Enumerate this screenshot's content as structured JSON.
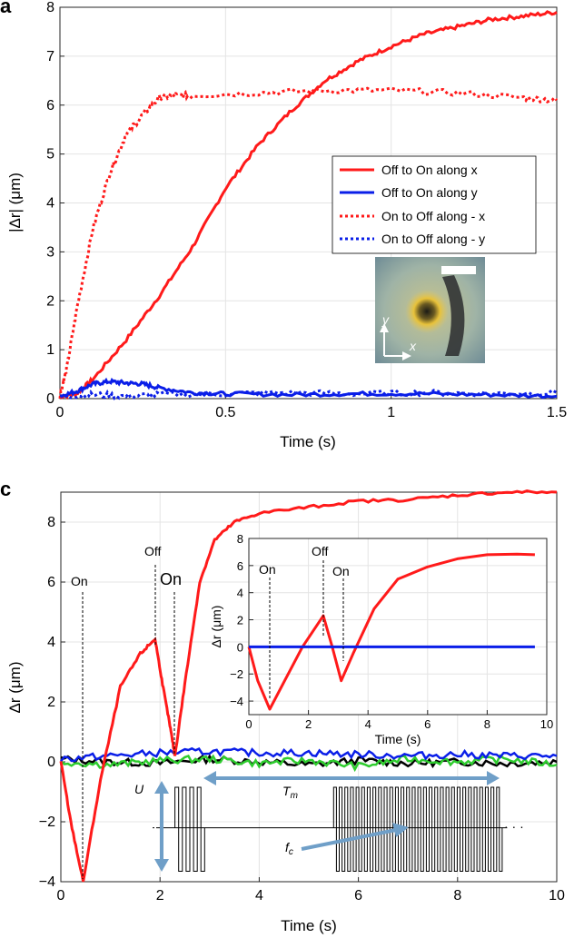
{
  "panel_a": {
    "label": "a",
    "inset_axis_y": "y",
    "inset_axis_x": "x"
  },
  "panel_c": {
    "label": "c",
    "annotations": {
      "on1": "On",
      "off1": "Off",
      "on2": "On",
      "inset_on1": "On",
      "inset_off": "Off",
      "inset_on2": "On",
      "U": "U",
      "Tm": "T",
      "Tm_sub": "m",
      "fc": "f",
      "fc_sub": "c",
      "dots": "· · ·"
    }
  },
  "colors": {
    "red": "#ff1a1a",
    "blue": "#0a1ee8",
    "black": "#000000",
    "green": "#2ecc2e",
    "arrow": "#6f9fc8"
  },
  "chart_data": [
    {
      "type": "line",
      "xlabel": "Time (s)",
      "ylabel": "|Δr| (μm)",
      "xlim": [
        0,
        1.5
      ],
      "ylim": [
        0,
        8
      ],
      "xticks": [
        "0",
        "0.5",
        "1",
        "1.5"
      ],
      "yticks": [
        "0",
        "1",
        "2",
        "3",
        "4",
        "5",
        "6",
        "7",
        "8"
      ],
      "grid": true,
      "legend_position": "right-middle",
      "series": [
        {
          "name": "Off to On along x",
          "style": "solid",
          "color": "red",
          "x": [
            0,
            0.05,
            0.1,
            0.2,
            0.3,
            0.4,
            0.5,
            0.6,
            0.7,
            0.8,
            0.9,
            1.0,
            1.1,
            1.2,
            1.3,
            1.4,
            1.5
          ],
          "y": [
            0.05,
            0.1,
            0.4,
            1.2,
            2.1,
            3.1,
            4.3,
            5.2,
            5.9,
            6.5,
            6.9,
            7.2,
            7.45,
            7.6,
            7.75,
            7.82,
            7.9
          ]
        },
        {
          "name": "Off to On along y",
          "style": "solid",
          "color": "blue",
          "x": [
            0,
            0.05,
            0.1,
            0.15,
            0.2,
            0.25,
            0.3,
            0.4,
            0.5,
            0.7,
            0.9,
            1.1,
            1.3,
            1.5
          ],
          "y": [
            0.05,
            0.15,
            0.3,
            0.35,
            0.32,
            0.3,
            0.22,
            0.12,
            0.1,
            0.08,
            0.1,
            0.1,
            0.08,
            0.05
          ]
        },
        {
          "name": "On to Off along - x",
          "style": "dotted",
          "color": "red",
          "x": [
            0,
            0.02,
            0.05,
            0.1,
            0.15,
            0.2,
            0.25,
            0.3,
            0.35,
            0.4,
            0.6,
            0.8,
            1.0,
            1.2,
            1.4,
            1.5
          ],
          "y": [
            0.05,
            0.6,
            1.8,
            3.5,
            4.6,
            5.4,
            5.8,
            6.15,
            6.2,
            6.2,
            6.25,
            6.3,
            6.3,
            6.25,
            6.15,
            6.1
          ]
        },
        {
          "name": "On to Off along - y",
          "style": "dotted",
          "color": "blue",
          "x": [
            0,
            0.1,
            0.2,
            0.3,
            0.5,
            0.7,
            0.9,
            1.1,
            1.3,
            1.5
          ],
          "y": [
            0.05,
            0.08,
            0.05,
            0.08,
            0.1,
            0.12,
            0.1,
            0.12,
            0.1,
            0.12
          ]
        }
      ]
    },
    {
      "type": "line",
      "xlabel": "Time (s)",
      "ylabel": "Δr (μm)",
      "xlim": [
        0,
        10
      ],
      "ylim": [
        -4,
        9
      ],
      "xticks": [
        "0",
        "2",
        "4",
        "6",
        "8",
        "10"
      ],
      "yticks": [
        "−4",
        "−2",
        "0",
        "2",
        "4",
        "6",
        "8"
      ],
      "grid": true,
      "series": [
        {
          "color": "red",
          "x": [
            0,
            0.2,
            0.45,
            0.8,
            1.2,
            1.6,
            1.9,
            2.05,
            2.2,
            2.3,
            2.5,
            2.8,
            3.1,
            3.5,
            4.0,
            5.0,
            6.0,
            7.0,
            8.0,
            9.0,
            10.0
          ],
          "y": [
            0,
            -2.0,
            -4.0,
            -0.6,
            2.5,
            3.6,
            4.1,
            2.6,
            1.2,
            0.2,
            2.6,
            6.0,
            7.4,
            8.0,
            8.3,
            8.5,
            8.7,
            8.75,
            8.9,
            9.0,
            9.0
          ]
        },
        {
          "color": "blue",
          "x": [
            0,
            1,
            2,
            3,
            4,
            5,
            6,
            7,
            8,
            9,
            10
          ],
          "y": [
            0.1,
            0.2,
            0.3,
            0.35,
            0.3,
            0.3,
            0.25,
            0.2,
            0.25,
            0.2,
            0.2
          ]
        },
        {
          "color": "black",
          "x": [
            0,
            1,
            2,
            3,
            4,
            5,
            6,
            7,
            8,
            9,
            10
          ],
          "y": [
            0.1,
            0.0,
            -0.05,
            0.1,
            0.0,
            -0.1,
            0.05,
            -0.05,
            0.0,
            -0.05,
            0.0
          ]
        },
        {
          "color": "green",
          "x": [
            0,
            1,
            2,
            3,
            4,
            5,
            6,
            7,
            8,
            9,
            10
          ],
          "y": [
            0.0,
            -0.1,
            0.05,
            0.1,
            -0.05,
            0.05,
            -0.15,
            0.1,
            0.0,
            0.1,
            -0.1
          ]
        }
      ],
      "inset": {
        "type": "line",
        "xlabel": "Time (s)",
        "ylabel": "Δr (μm)",
        "xlim": [
          0,
          10
        ],
        "ylim": [
          -5,
          8
        ],
        "xticks": [
          "0",
          "2",
          "4",
          "6",
          "8",
          "10"
        ],
        "yticks": [
          "−4",
          "−2",
          "0",
          "2",
          "4",
          "6",
          "8"
        ],
        "series": [
          {
            "color": "red",
            "x": [
              0,
              0.3,
              0.7,
              1.2,
              1.8,
              2.5,
              2.8,
              3.1,
              3.5,
              4.2,
              5.0,
              6.0,
              7.0,
              8.0,
              9.0,
              9.6
            ],
            "y": [
              0,
              -2.5,
              -4.6,
              -2.5,
              0.0,
              2.3,
              0.0,
              -2.5,
              -0.5,
              2.8,
              5.0,
              5.9,
              6.5,
              6.8,
              6.85,
              6.8
            ]
          },
          {
            "color": "blue",
            "x": [
              0,
              9.6
            ],
            "y": [
              0,
              0
            ]
          }
        ]
      }
    }
  ]
}
